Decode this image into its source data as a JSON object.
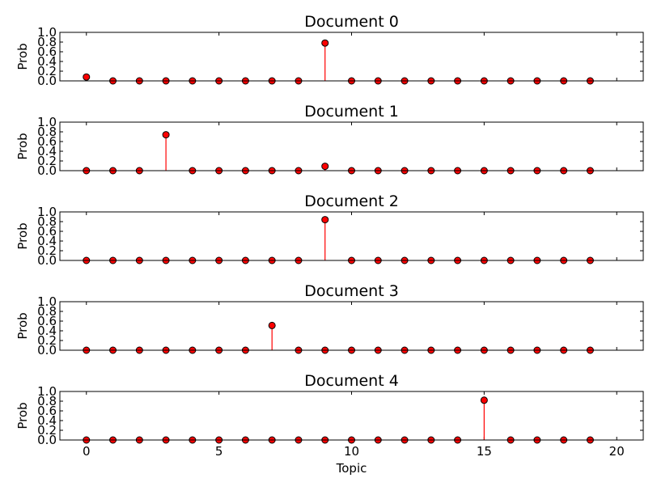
{
  "chart_data": [
    {
      "type": "stem",
      "title": "Document 0",
      "ylabel": "Prob",
      "xlabel": "",
      "xlim": [
        -1,
        21
      ],
      "ylim": [
        0.0,
        1.0
      ],
      "x": [
        0,
        1,
        2,
        3,
        4,
        5,
        6,
        7,
        8,
        9,
        10,
        11,
        12,
        13,
        14,
        15,
        16,
        17,
        18,
        19
      ],
      "values": [
        0.08,
        0.0,
        0.0,
        0.0,
        0.0,
        0.0,
        0.0,
        0.0,
        0.0,
        0.78,
        0.0,
        0.0,
        0.0,
        0.0,
        0.0,
        0.0,
        0.0,
        0.0,
        0.0,
        0.0
      ],
      "yticks": [
        "1.0",
        "0.8",
        "0.6",
        "0.4",
        "0.2",
        "0.0"
      ]
    },
    {
      "type": "stem",
      "title": "Document 1",
      "ylabel": "Prob",
      "xlabel": "",
      "xlim": [
        -1,
        21
      ],
      "ylim": [
        0.0,
        1.0
      ],
      "x": [
        0,
        1,
        2,
        3,
        4,
        5,
        6,
        7,
        8,
        9,
        10,
        11,
        12,
        13,
        14,
        15,
        16,
        17,
        18,
        19
      ],
      "values": [
        0.0,
        0.0,
        0.0,
        0.74,
        0.0,
        0.0,
        0.0,
        0.0,
        0.0,
        0.09,
        0.0,
        0.0,
        0.0,
        0.0,
        0.0,
        0.0,
        0.0,
        0.0,
        0.0,
        0.0
      ],
      "yticks": [
        "1.0",
        "0.8",
        "0.6",
        "0.4",
        "0.2",
        "0.0"
      ]
    },
    {
      "type": "stem",
      "title": "Document 2",
      "ylabel": "Prob",
      "xlabel": "",
      "xlim": [
        -1,
        21
      ],
      "ylim": [
        0.0,
        1.0
      ],
      "x": [
        0,
        1,
        2,
        3,
        4,
        5,
        6,
        7,
        8,
        9,
        10,
        11,
        12,
        13,
        14,
        15,
        16,
        17,
        18,
        19
      ],
      "values": [
        0.0,
        0.0,
        0.0,
        0.0,
        0.0,
        0.0,
        0.0,
        0.0,
        0.0,
        0.84,
        0.0,
        0.0,
        0.0,
        0.0,
        0.0,
        0.0,
        0.0,
        0.0,
        0.0,
        0.0
      ],
      "yticks": [
        "1.0",
        "0.8",
        "0.6",
        "0.4",
        "0.2",
        "0.0"
      ]
    },
    {
      "type": "stem",
      "title": "Document 3",
      "ylabel": "Prob",
      "xlabel": "",
      "xlim": [
        -1,
        21
      ],
      "ylim": [
        0.0,
        1.0
      ],
      "x": [
        0,
        1,
        2,
        3,
        4,
        5,
        6,
        7,
        8,
        9,
        10,
        11,
        12,
        13,
        14,
        15,
        16,
        17,
        18,
        19
      ],
      "values": [
        0.0,
        0.0,
        0.0,
        0.0,
        0.0,
        0.0,
        0.0,
        0.51,
        0.0,
        0.0,
        0.0,
        0.0,
        0.0,
        0.0,
        0.0,
        0.0,
        0.0,
        0.0,
        0.0,
        0.0
      ],
      "yticks": [
        "1.0",
        "0.8",
        "0.6",
        "0.4",
        "0.2",
        "0.0"
      ]
    },
    {
      "type": "stem",
      "title": "Document 4",
      "ylabel": "Prob",
      "xlabel": "Topic",
      "xlim": [
        -1,
        21
      ],
      "ylim": [
        0.0,
        1.0
      ],
      "x": [
        0,
        1,
        2,
        3,
        4,
        5,
        6,
        7,
        8,
        9,
        10,
        11,
        12,
        13,
        14,
        15,
        16,
        17,
        18,
        19
      ],
      "values": [
        0.0,
        0.0,
        0.0,
        0.0,
        0.0,
        0.0,
        0.0,
        0.0,
        0.0,
        0.0,
        0.0,
        0.0,
        0.0,
        0.0,
        0.0,
        0.82,
        0.0,
        0.0,
        0.0,
        0.0
      ],
      "yticks": [
        "1.0",
        "0.8",
        "0.6",
        "0.4",
        "0.2",
        "0.0"
      ],
      "xticks": [
        "0",
        "5",
        "10",
        "15",
        "20"
      ]
    }
  ],
  "colors": {
    "marker_fill": "#ff0000",
    "stem": "#ff0000",
    "marker_edge": "#000000",
    "axes": "#000000"
  }
}
